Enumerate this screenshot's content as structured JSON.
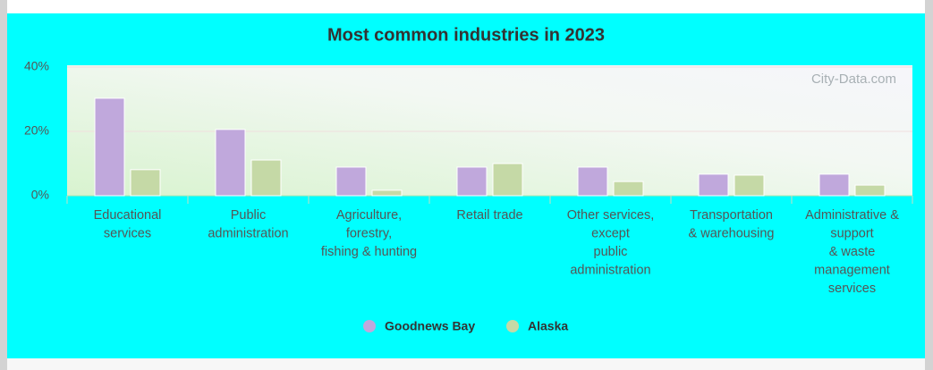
{
  "chart_data": {
    "type": "bar",
    "title": "Most common industries in 2023",
    "watermark": "City-Data.com",
    "categories": [
      [
        "Educational",
        "services"
      ],
      [
        "Public",
        "administration"
      ],
      [
        "Agriculture,",
        "forestry,",
        "fishing & hunting"
      ],
      [
        "Retail trade"
      ],
      [
        "Other services,",
        "except",
        "public",
        "administration"
      ],
      [
        "Transportation",
        "& warehousing"
      ],
      [
        "Administrative &",
        "support",
        "& waste",
        "management",
        "services"
      ]
    ],
    "series": [
      {
        "name": "Goodnews Bay",
        "color": "#c0a8dc",
        "values": [
          30.3,
          20.6,
          8.9,
          8.9,
          8.9,
          6.7,
          6.7
        ]
      },
      {
        "name": "Alaska",
        "color": "#c5d9a6",
        "values": [
          8.1,
          11.1,
          1.7,
          10,
          4.4,
          6.4,
          3.3
        ]
      }
    ],
    "ylim": [
      0,
      40
    ],
    "yticks": [
      {
        "value": 0,
        "label": "0%"
      },
      {
        "value": 20,
        "label": "20%"
      },
      {
        "value": 40,
        "label": "40%"
      }
    ],
    "grid": true
  }
}
